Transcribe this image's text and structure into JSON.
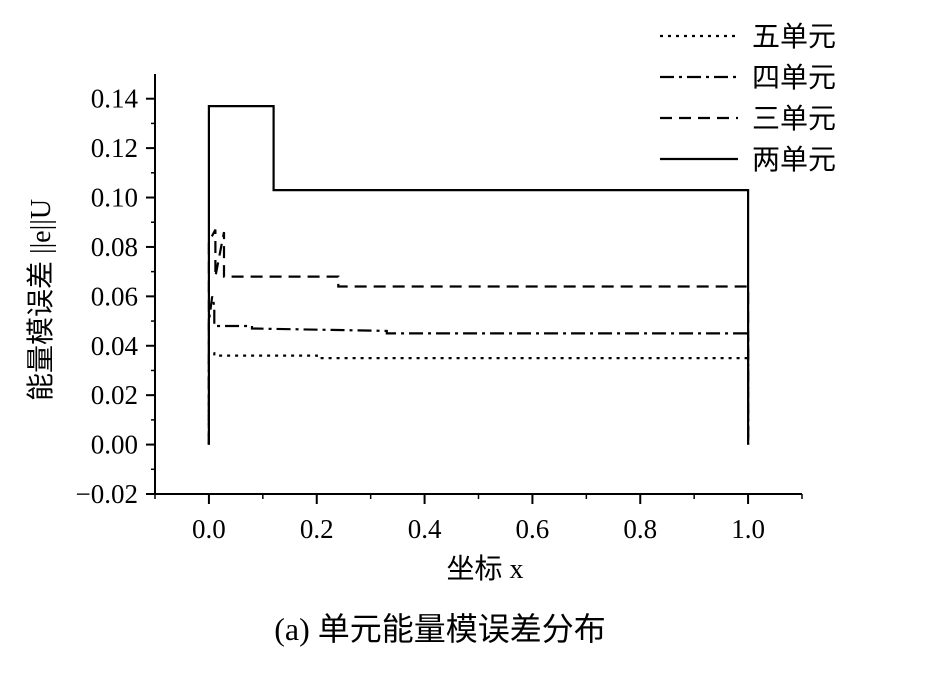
{
  "chart_data": {
    "type": "line",
    "caption": "(a)  单元能量模误差分布",
    "xlabel": "坐标 x",
    "ylabel": "能量模误差 ||e||U",
    "xlim": [
      -0.1,
      1.1
    ],
    "ylim": [
      -0.02,
      0.15
    ],
    "xticks": [
      {
        "value": 0.0,
        "label": "0.0"
      },
      {
        "value": 0.2,
        "label": "0.2"
      },
      {
        "value": 0.4,
        "label": "0.4"
      },
      {
        "value": 0.6,
        "label": "0.6"
      },
      {
        "value": 0.8,
        "label": "0.8"
      },
      {
        "value": 1.0,
        "label": "1.0"
      }
    ],
    "yticks": [
      {
        "value": -0.02,
        "label": "−0.02"
      },
      {
        "value": 0.0,
        "label": "0.00"
      },
      {
        "value": 0.02,
        "label": "0.02"
      },
      {
        "value": 0.04,
        "label": "0.04"
      },
      {
        "value": 0.06,
        "label": "0.06"
      },
      {
        "value": 0.08,
        "label": "0.08"
      },
      {
        "value": 0.1,
        "label": "0.10"
      },
      {
        "value": 0.12,
        "label": "0.12"
      },
      {
        "value": 0.14,
        "label": "0.14"
      }
    ],
    "legend_position": "top-right",
    "grid": false,
    "series": [
      {
        "name": "五单元",
        "dash": "dot",
        "x": [
          0.0,
          0.0,
          0.01,
          0.01,
          0.2,
          0.2,
          1.0,
          1.0
        ],
        "y": [
          0.0,
          0.037,
          0.037,
          0.036,
          0.036,
          0.035,
          0.035,
          0.0
        ]
      },
      {
        "name": "四单元",
        "dash": "dashdot",
        "x": [
          0.0,
          0.0,
          0.006,
          0.01,
          0.01,
          0.08,
          0.08,
          0.33,
          0.33,
          1.0,
          1.0
        ],
        "y": [
          0.0,
          0.05,
          0.06,
          0.056,
          0.048,
          0.048,
          0.047,
          0.046,
          0.045,
          0.045,
          0.0
        ]
      },
      {
        "name": "三单元",
        "dash": "dash",
        "x": [
          0.0,
          0.0,
          0.012,
          0.012,
          0.028,
          0.028,
          0.24,
          0.24,
          1.0,
          1.0
        ],
        "y": [
          0.0,
          0.082,
          0.087,
          0.068,
          0.086,
          0.068,
          0.068,
          0.064,
          0.064,
          0.0
        ]
      },
      {
        "name": "两单元",
        "dash": "solid",
        "x": [
          0.0,
          0.0,
          0.12,
          0.12,
          1.0,
          1.0
        ],
        "y": [
          0.0,
          0.137,
          0.137,
          0.103,
          0.103,
          0.0
        ]
      }
    ]
  }
}
